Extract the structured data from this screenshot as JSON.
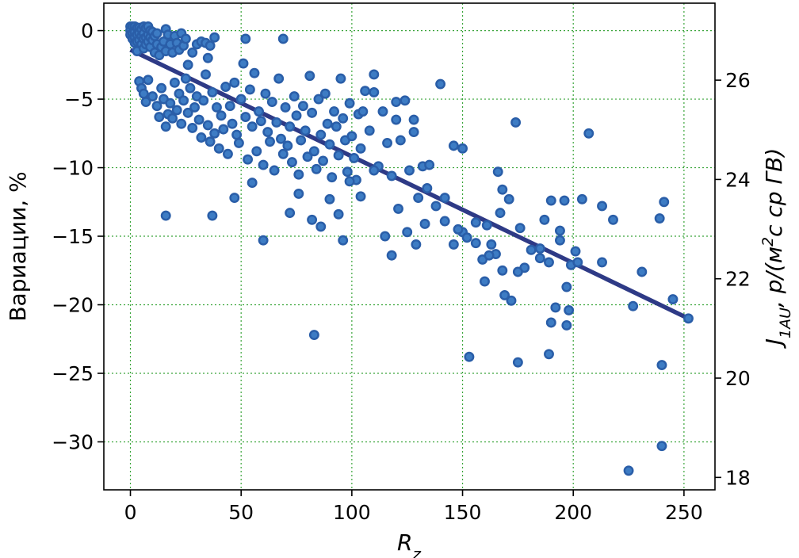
{
  "chart_data": {
    "type": "scatter",
    "xlabel_base": "R",
    "xlabel_sub": "z",
    "ylabel": "Вариации, %",
    "y2label_base": "J",
    "y2label_sub": "1AU",
    "y2label_rest": ", p/(м",
    "y2label_sup": "2",
    "y2label_end": "c cp ГВ)",
    "xlim": [
      -12,
      264
    ],
    "ylim": [
      -33.5,
      2
    ],
    "y2lim": [
      17.75,
      27.55
    ],
    "xticks": [
      0,
      50,
      100,
      150,
      200,
      250
    ],
    "yticks": [
      0,
      -5,
      -10,
      -15,
      -20,
      -25,
      -30
    ],
    "ytick_labels": [
      "0",
      "−5",
      "−10",
      "−15",
      "−20",
      "−25",
      "−30"
    ],
    "y2ticks": [
      18,
      20,
      22,
      24,
      26
    ],
    "grid": true,
    "colors": {
      "points": "#3d7cc4",
      "point_edge": "#2a5ea8",
      "fit_line": "#2e3a86",
      "grid": "#3aa53a"
    },
    "fit_line": {
      "x": [
        0,
        252
      ],
      "y": [
        -1.4,
        -21.0
      ]
    },
    "points": [
      [
        0,
        0.3
      ],
      [
        0,
        0
      ],
      [
        0,
        -0.3
      ],
      [
        1,
        0.3
      ],
      [
        1,
        -0.2
      ],
      [
        1,
        -0.6
      ],
      [
        2,
        0.3
      ],
      [
        2,
        -0.1
      ],
      [
        2,
        -0.5
      ],
      [
        2,
        -0.9
      ],
      [
        3,
        0.2
      ],
      [
        3,
        -0.3
      ],
      [
        3,
        -0.8
      ],
      [
        3,
        -1.5
      ],
      [
        4,
        0.2
      ],
      [
        4,
        -0.2
      ],
      [
        4,
        -0.7
      ],
      [
        5,
        0.1
      ],
      [
        5,
        -0.4
      ],
      [
        5,
        -1.0
      ],
      [
        6,
        0.3
      ],
      [
        6,
        -0.2
      ],
      [
        6,
        -0.6
      ],
      [
        6,
        -1.3
      ],
      [
        7,
        0.2
      ],
      [
        7,
        -0.5
      ],
      [
        7,
        -1.0
      ],
      [
        8,
        0.3
      ],
      [
        8,
        -0.3
      ],
      [
        8,
        -0.8
      ],
      [
        9,
        0
      ],
      [
        9,
        -0.5
      ],
      [
        9,
        -1.2
      ],
      [
        10,
        -0.1
      ],
      [
        10,
        -0.7
      ],
      [
        11,
        -0.4
      ],
      [
        11,
        -1.6
      ],
      [
        12,
        -0.2
      ],
      [
        12,
        -1.0
      ],
      [
        13,
        -1.8
      ],
      [
        14,
        -1.2
      ],
      [
        15,
        -0.8
      ],
      [
        16,
        0.1
      ],
      [
        16,
        -1.5
      ],
      [
        17,
        -0.3
      ],
      [
        18,
        -1.0
      ],
      [
        19,
        -1.6
      ],
      [
        20,
        -0.4
      ],
      [
        21,
        -0.9
      ],
      [
        22,
        -1.4
      ],
      [
        23,
        -0.2
      ],
      [
        24,
        -1.1
      ],
      [
        25,
        -0.6
      ],
      [
        26,
        -2.5
      ],
      [
        28,
        -1.6
      ],
      [
        30,
        -1.0
      ],
      [
        32,
        -0.8
      ],
      [
        34,
        -0.9
      ],
      [
        35,
        -2.0
      ],
      [
        36,
        -1.1
      ],
      [
        38,
        -0.5
      ],
      [
        4,
        -3.7
      ],
      [
        5,
        -4.2
      ],
      [
        6,
        -4.6
      ],
      [
        7,
        -5.2
      ],
      [
        8,
        -3.6
      ],
      [
        10,
        -4.8
      ],
      [
        12,
        -5.5
      ],
      [
        13,
        -6.3
      ],
      [
        14,
        -4.2
      ],
      [
        15,
        -5.0
      ],
      [
        16,
        -7.0
      ],
      [
        17,
        -6.1
      ],
      [
        18,
        -5.3
      ],
      [
        19,
        -6.4
      ],
      [
        20,
        -3.8
      ],
      [
        21,
        -5.8
      ],
      [
        22,
        -4.6
      ],
      [
        23,
        -6.8
      ],
      [
        24,
        -5.1
      ],
      [
        25,
        -3.5
      ],
      [
        26,
        -6.0
      ],
      [
        27,
        -4.2
      ],
      [
        28,
        -7.1
      ],
      [
        29,
        -5.6
      ],
      [
        30,
        -4.8
      ],
      [
        31,
        -6.5
      ],
      [
        32,
        -7.8
      ],
      [
        33,
        -5.1
      ],
      [
        34,
        -3.2
      ],
      [
        35,
        -6.9
      ],
      [
        36,
        -8.1
      ],
      [
        37,
        -4.5
      ],
      [
        38,
        -7.5
      ],
      [
        39,
        -5.6
      ],
      [
        40,
        -8.6
      ],
      [
        41,
        -6.2
      ],
      [
        42,
        -7.2
      ],
      [
        43,
        -4.1
      ],
      [
        44,
        -9.0
      ],
      [
        45,
        -5.5
      ],
      [
        46,
        -6.8
      ],
      [
        47,
        -3.8
      ],
      [
        48,
        -7.6
      ],
      [
        49,
        -8.2
      ],
      [
        50,
        -5.0
      ],
      [
        51,
        -2.4
      ],
      [
        52,
        -6.3
      ],
      [
        53,
        -9.4
      ],
      [
        54,
        -4.3
      ],
      [
        55,
        -7.0
      ],
      [
        56,
        -3.1
      ],
      [
        57,
        -8.8
      ],
      [
        58,
        -5.9
      ],
      [
        59,
        -6.6
      ],
      [
        60,
        -9.8
      ],
      [
        61,
        -4.6
      ],
      [
        62,
        -7.4
      ],
      [
        63,
        -8.1
      ],
      [
        64,
        -5.2
      ],
      [
        65,
        -10.2
      ],
      [
        66,
        -6.7
      ],
      [
        67,
        -3.5
      ],
      [
        68,
        -7.9
      ],
      [
        69,
        -9.0
      ],
      [
        70,
        -5.6
      ],
      [
        71,
        -8.4
      ],
      [
        72,
        -7.0
      ],
      [
        73,
        -9.6
      ],
      [
        74,
        -4.8
      ],
      [
        75,
        -6.2
      ],
      [
        76,
        -10.5
      ],
      [
        77,
        -8.0
      ],
      [
        78,
        -5.5
      ],
      [
        79,
        -7.3
      ],
      [
        80,
        -9.2
      ],
      [
        81,
        -3.3
      ],
      [
        82,
        -6.0
      ],
      [
        83,
        -8.8
      ],
      [
        84,
        -10.1
      ],
      [
        85,
        -5.0
      ],
      [
        86,
        -7.6
      ],
      [
        87,
        -9.5
      ],
      [
        88,
        -4.6
      ],
      [
        89,
        -6.8
      ],
      [
        90,
        -8.3
      ],
      [
        91,
        -10.7
      ],
      [
        92,
        -5.9
      ],
      [
        93,
        -7.0
      ],
      [
        94,
        -9.1
      ],
      [
        95,
        -3.5
      ],
      [
        96,
        -6.4
      ],
      [
        97,
        -8.0
      ],
      [
        98,
        -10.3
      ],
      [
        99,
        -5.3
      ],
      [
        100,
        -7.7
      ],
      [
        101,
        -9.3
      ],
      [
        102,
        -10.9
      ],
      [
        103,
        -6.1
      ],
      [
        104,
        -8.6
      ],
      [
        106,
        -4.4
      ],
      [
        108,
        -7.3
      ],
      [
        110,
        -3.2
      ],
      [
        112,
        -9.9
      ],
      [
        114,
        -5.9
      ],
      [
        116,
        -8.2
      ],
      [
        118,
        -10.6
      ],
      [
        120,
        -6.5
      ],
      [
        122,
        -8.0
      ],
      [
        124,
        -5.1
      ],
      [
        126,
        -10.2
      ],
      [
        128,
        -7.4
      ],
      [
        130,
        -12.2
      ],
      [
        132,
        -9.9
      ],
      [
        134,
        -11.5
      ],
      [
        16,
        -13.5
      ],
      [
        37,
        -13.5
      ],
      [
        47,
        -12.2
      ],
      [
        55,
        -11.1
      ],
      [
        60,
        -15.3
      ],
      [
        72,
        -13.3
      ],
      [
        76,
        -11.9
      ],
      [
        82,
        -13.8
      ],
      [
        86,
        -14.3
      ],
      [
        90,
        -12.3
      ],
      [
        94,
        -13.4
      ],
      [
        96,
        -15.3
      ],
      [
        99,
        -11.0
      ],
      [
        104,
        -12.1
      ],
      [
        110,
        -10.2
      ],
      [
        115,
        -15.0
      ],
      [
        118,
        -16.4
      ],
      [
        121,
        -13.0
      ],
      [
        125,
        -14.7
      ],
      [
        129,
        -15.6
      ],
      [
        133,
        -14.1
      ],
      [
        138,
        -12.8
      ],
      [
        142,
        -13.9
      ],
      [
        146,
        -15.6
      ],
      [
        150,
        -14.7
      ],
      [
        156,
        -15.5
      ],
      [
        159,
        -16.7
      ],
      [
        161,
        -14.2
      ],
      [
        165,
        -16.3
      ],
      [
        167,
        -13.3
      ],
      [
        169,
        -19.3
      ],
      [
        171,
        -12.3
      ],
      [
        172,
        -19.7
      ],
      [
        176,
        -14.4
      ],
      [
        178,
        -17.3
      ],
      [
        181,
        -16.0
      ],
      [
        185,
        -16.6
      ],
      [
        187,
        -13.8
      ],
      [
        189,
        -16.9
      ],
      [
        190,
        -12.4
      ],
      [
        192,
        -20.2
      ],
      [
        194,
        -14.6
      ],
      [
        196,
        -12.4
      ],
      [
        197,
        -18.7
      ],
      [
        198,
        -20.4
      ],
      [
        201,
        -16.1
      ],
      [
        204,
        -12.3
      ],
      [
        213,
        -12.8
      ],
      [
        213,
        -16.9
      ],
      [
        218,
        -13.8
      ],
      [
        231,
        -17.6
      ],
      [
        239,
        -13.7
      ],
      [
        241,
        -12.5
      ],
      [
        245,
        -19.6
      ],
      [
        252,
        -21.0
      ],
      [
        227,
        -20.1
      ],
      [
        190,
        -21.3
      ],
      [
        197,
        -21.5
      ],
      [
        189,
        -23.6
      ],
      [
        153,
        -23.8
      ],
      [
        175,
        -24.2
      ],
      [
        240,
        -24.4
      ],
      [
        83,
        -22.2
      ],
      [
        240,
        -30.3
      ],
      [
        225,
        -32.1
      ],
      [
        207,
        -7.5
      ],
      [
        174,
        -6.7
      ],
      [
        140,
        -3.9
      ],
      [
        150,
        -8.6
      ],
      [
        146,
        -8.4
      ],
      [
        166,
        -10.3
      ],
      [
        168,
        -11.6
      ],
      [
        160,
        -18.3
      ],
      [
        162,
        -16.4
      ],
      [
        175,
        -17.6
      ],
      [
        185,
        -15.9
      ],
      [
        194,
        -15.3
      ],
      [
        199,
        -17.1
      ],
      [
        202,
        -16.9
      ],
      [
        69,
        -0.6
      ],
      [
        52,
        -0.6
      ],
      [
        110,
        -4.5
      ],
      [
        105,
        -5.9
      ],
      [
        120,
        -5.2
      ],
      [
        128,
        -6.5
      ],
      [
        135,
        -9.8
      ],
      [
        142,
        -12.2
      ],
      [
        148,
        -14.5
      ],
      [
        156,
        -14.0
      ],
      [
        152,
        -15.1
      ],
      [
        163,
        -15.6
      ],
      [
        168,
        -17.5
      ]
    ]
  }
}
